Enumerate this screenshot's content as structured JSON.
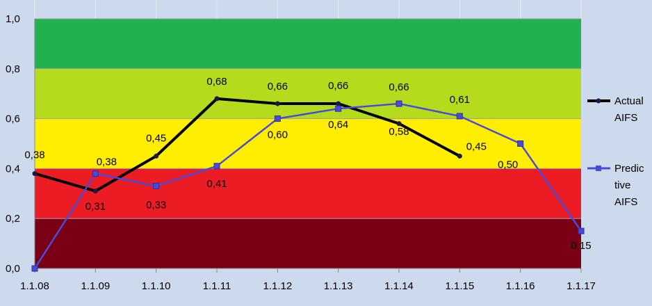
{
  "chart_data": {
    "type": "line",
    "categories": [
      "1.1.08",
      "1.1.09",
      "1.1.10",
      "1.1.11",
      "1.1.12",
      "1.1.13",
      "1.1.14",
      "1.1.15",
      "1.1.16",
      "1.1.17"
    ],
    "ylim": [
      0,
      1
    ],
    "yticks": [
      "0,0",
      "0,2",
      "0,4",
      "0,6",
      "0,8",
      "1,0"
    ],
    "grid": true,
    "legend_position": "right",
    "bands": [
      {
        "from": 0.0,
        "to": 0.2,
        "color": "#7a0016"
      },
      {
        "from": 0.2,
        "to": 0.4,
        "color": "#ec1c24"
      },
      {
        "from": 0.4,
        "to": 0.6,
        "color": "#ffee00"
      },
      {
        "from": 0.6,
        "to": 0.8,
        "color": "#b5dc1c"
      },
      {
        "from": 0.8,
        "to": 1.0,
        "color": "#22b14c"
      }
    ],
    "series": [
      {
        "name_lines": [
          "Actual",
          "AIFS"
        ],
        "color": "#000000",
        "values": [
          0.38,
          0.31,
          0.45,
          0.68,
          0.66,
          0.66,
          0.58,
          0.45,
          null,
          null
        ],
        "labels": [
          "0,38",
          "0,31",
          "0,45",
          "0,68",
          "0,66",
          "0,66",
          "0,58",
          "0,45",
          null,
          null
        ]
      },
      {
        "name_lines": [
          "Predic",
          "tive",
          "AIFS"
        ],
        "color": "#4a4ad8",
        "values": [
          0.0,
          0.38,
          0.33,
          0.41,
          0.6,
          0.64,
          0.66,
          0.61,
          0.5,
          0.15
        ],
        "labels": [
          null,
          "0,38",
          "0,33",
          "0,41",
          "0,60",
          "0,64",
          "0,66",
          "0,61",
          "0,50",
          "0,15"
        ]
      }
    ]
  }
}
